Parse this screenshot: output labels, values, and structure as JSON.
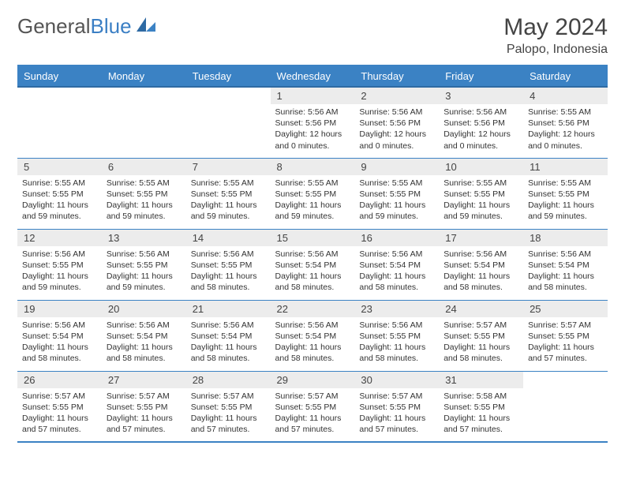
{
  "brand": {
    "first": "General",
    "second": "Blue"
  },
  "title": "May 2024",
  "location": "Palopo, Indonesia",
  "colors": {
    "header_bg": "#3b82c4",
    "header_text": "#ffffff",
    "daynum_bg": "#ececec",
    "border": "#3b82c4",
    "text": "#333333",
    "brand_gray": "#555555",
    "brand_blue": "#3b7fc4"
  },
  "fonts": {
    "title_size": 30,
    "location_size": 16,
    "header_size": 13,
    "daynum_size": 13,
    "body_size": 10.5
  },
  "weekdays": [
    "Sunday",
    "Monday",
    "Tuesday",
    "Wednesday",
    "Thursday",
    "Friday",
    "Saturday"
  ],
  "weeks": [
    [
      {
        "day": "",
        "sunrise": "",
        "sunset": "",
        "daylight": ""
      },
      {
        "day": "",
        "sunrise": "",
        "sunset": "",
        "daylight": ""
      },
      {
        "day": "",
        "sunrise": "",
        "sunset": "",
        "daylight": ""
      },
      {
        "day": "1",
        "sunrise": "Sunrise: 5:56 AM",
        "sunset": "Sunset: 5:56 PM",
        "daylight": "Daylight: 12 hours and 0 minutes."
      },
      {
        "day": "2",
        "sunrise": "Sunrise: 5:56 AM",
        "sunset": "Sunset: 5:56 PM",
        "daylight": "Daylight: 12 hours and 0 minutes."
      },
      {
        "day": "3",
        "sunrise": "Sunrise: 5:56 AM",
        "sunset": "Sunset: 5:56 PM",
        "daylight": "Daylight: 12 hours and 0 minutes."
      },
      {
        "day": "4",
        "sunrise": "Sunrise: 5:55 AM",
        "sunset": "Sunset: 5:56 PM",
        "daylight": "Daylight: 12 hours and 0 minutes."
      }
    ],
    [
      {
        "day": "5",
        "sunrise": "Sunrise: 5:55 AM",
        "sunset": "Sunset: 5:55 PM",
        "daylight": "Daylight: 11 hours and 59 minutes."
      },
      {
        "day": "6",
        "sunrise": "Sunrise: 5:55 AM",
        "sunset": "Sunset: 5:55 PM",
        "daylight": "Daylight: 11 hours and 59 minutes."
      },
      {
        "day": "7",
        "sunrise": "Sunrise: 5:55 AM",
        "sunset": "Sunset: 5:55 PM",
        "daylight": "Daylight: 11 hours and 59 minutes."
      },
      {
        "day": "8",
        "sunrise": "Sunrise: 5:55 AM",
        "sunset": "Sunset: 5:55 PM",
        "daylight": "Daylight: 11 hours and 59 minutes."
      },
      {
        "day": "9",
        "sunrise": "Sunrise: 5:55 AM",
        "sunset": "Sunset: 5:55 PM",
        "daylight": "Daylight: 11 hours and 59 minutes."
      },
      {
        "day": "10",
        "sunrise": "Sunrise: 5:55 AM",
        "sunset": "Sunset: 5:55 PM",
        "daylight": "Daylight: 11 hours and 59 minutes."
      },
      {
        "day": "11",
        "sunrise": "Sunrise: 5:55 AM",
        "sunset": "Sunset: 5:55 PM",
        "daylight": "Daylight: 11 hours and 59 minutes."
      }
    ],
    [
      {
        "day": "12",
        "sunrise": "Sunrise: 5:56 AM",
        "sunset": "Sunset: 5:55 PM",
        "daylight": "Daylight: 11 hours and 59 minutes."
      },
      {
        "day": "13",
        "sunrise": "Sunrise: 5:56 AM",
        "sunset": "Sunset: 5:55 PM",
        "daylight": "Daylight: 11 hours and 59 minutes."
      },
      {
        "day": "14",
        "sunrise": "Sunrise: 5:56 AM",
        "sunset": "Sunset: 5:55 PM",
        "daylight": "Daylight: 11 hours and 58 minutes."
      },
      {
        "day": "15",
        "sunrise": "Sunrise: 5:56 AM",
        "sunset": "Sunset: 5:54 PM",
        "daylight": "Daylight: 11 hours and 58 minutes."
      },
      {
        "day": "16",
        "sunrise": "Sunrise: 5:56 AM",
        "sunset": "Sunset: 5:54 PM",
        "daylight": "Daylight: 11 hours and 58 minutes."
      },
      {
        "day": "17",
        "sunrise": "Sunrise: 5:56 AM",
        "sunset": "Sunset: 5:54 PM",
        "daylight": "Daylight: 11 hours and 58 minutes."
      },
      {
        "day": "18",
        "sunrise": "Sunrise: 5:56 AM",
        "sunset": "Sunset: 5:54 PM",
        "daylight": "Daylight: 11 hours and 58 minutes."
      }
    ],
    [
      {
        "day": "19",
        "sunrise": "Sunrise: 5:56 AM",
        "sunset": "Sunset: 5:54 PM",
        "daylight": "Daylight: 11 hours and 58 minutes."
      },
      {
        "day": "20",
        "sunrise": "Sunrise: 5:56 AM",
        "sunset": "Sunset: 5:54 PM",
        "daylight": "Daylight: 11 hours and 58 minutes."
      },
      {
        "day": "21",
        "sunrise": "Sunrise: 5:56 AM",
        "sunset": "Sunset: 5:54 PM",
        "daylight": "Daylight: 11 hours and 58 minutes."
      },
      {
        "day": "22",
        "sunrise": "Sunrise: 5:56 AM",
        "sunset": "Sunset: 5:54 PM",
        "daylight": "Daylight: 11 hours and 58 minutes."
      },
      {
        "day": "23",
        "sunrise": "Sunrise: 5:56 AM",
        "sunset": "Sunset: 5:55 PM",
        "daylight": "Daylight: 11 hours and 58 minutes."
      },
      {
        "day": "24",
        "sunrise": "Sunrise: 5:57 AM",
        "sunset": "Sunset: 5:55 PM",
        "daylight": "Daylight: 11 hours and 58 minutes."
      },
      {
        "day": "25",
        "sunrise": "Sunrise: 5:57 AM",
        "sunset": "Sunset: 5:55 PM",
        "daylight": "Daylight: 11 hours and 57 minutes."
      }
    ],
    [
      {
        "day": "26",
        "sunrise": "Sunrise: 5:57 AM",
        "sunset": "Sunset: 5:55 PM",
        "daylight": "Daylight: 11 hours and 57 minutes."
      },
      {
        "day": "27",
        "sunrise": "Sunrise: 5:57 AM",
        "sunset": "Sunset: 5:55 PM",
        "daylight": "Daylight: 11 hours and 57 minutes."
      },
      {
        "day": "28",
        "sunrise": "Sunrise: 5:57 AM",
        "sunset": "Sunset: 5:55 PM",
        "daylight": "Daylight: 11 hours and 57 minutes."
      },
      {
        "day": "29",
        "sunrise": "Sunrise: 5:57 AM",
        "sunset": "Sunset: 5:55 PM",
        "daylight": "Daylight: 11 hours and 57 minutes."
      },
      {
        "day": "30",
        "sunrise": "Sunrise: 5:57 AM",
        "sunset": "Sunset: 5:55 PM",
        "daylight": "Daylight: 11 hours and 57 minutes."
      },
      {
        "day": "31",
        "sunrise": "Sunrise: 5:58 AM",
        "sunset": "Sunset: 5:55 PM",
        "daylight": "Daylight: 11 hours and 57 minutes."
      },
      {
        "day": "",
        "sunrise": "",
        "sunset": "",
        "daylight": ""
      }
    ]
  ]
}
